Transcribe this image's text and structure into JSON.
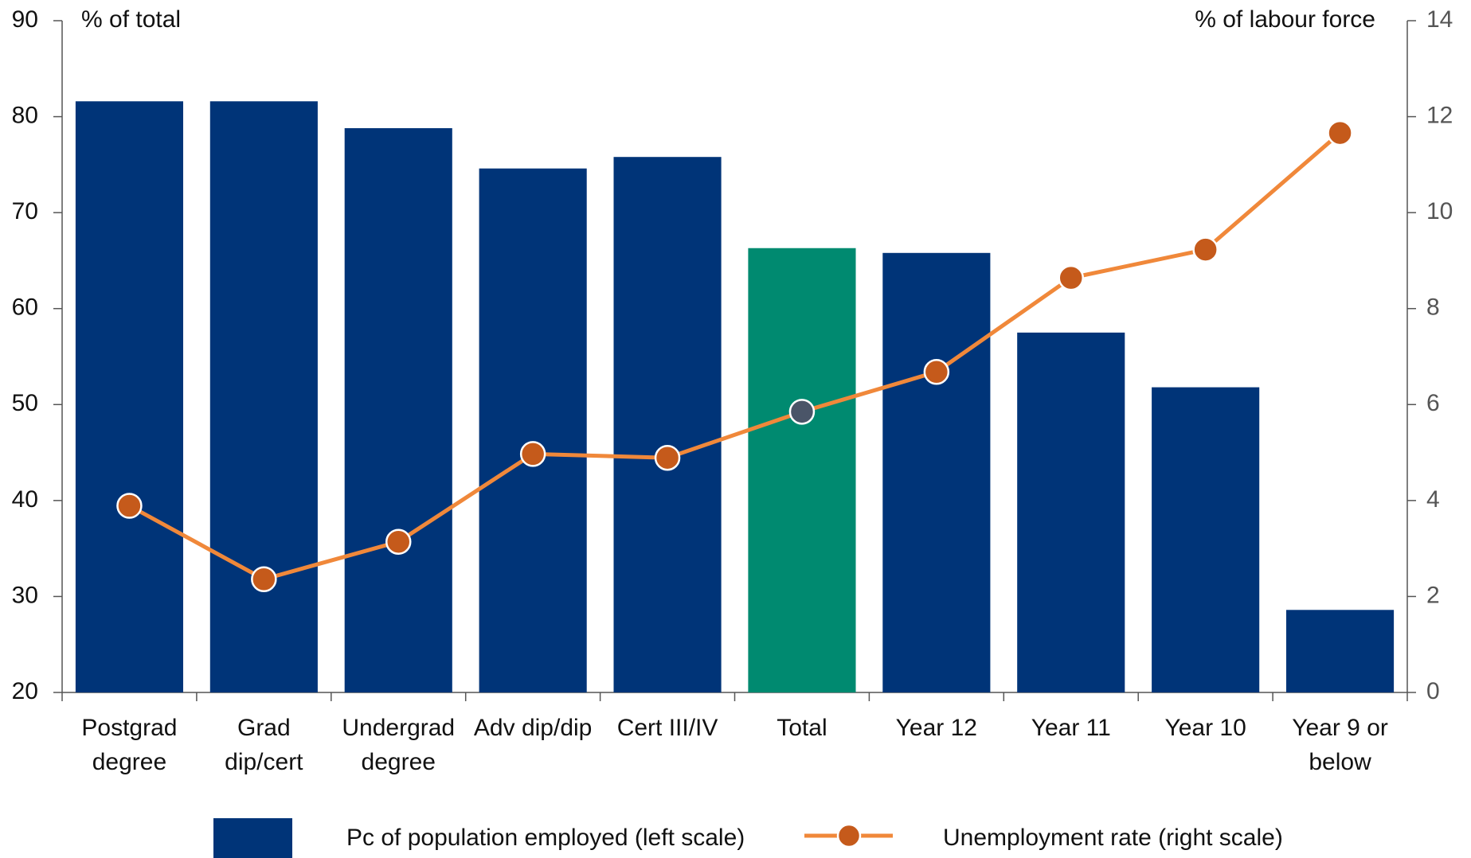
{
  "chart_data": {
    "type": "bar-line",
    "y_label": "% of total",
    "y2_label": "% of labour force",
    "categories": [
      [
        "Postgrad",
        "degree"
      ],
      [
        "Grad",
        "dip/cert"
      ],
      [
        "Undergrad",
        "degree"
      ],
      [
        "Adv dip/dip"
      ],
      [
        "Cert III/IV"
      ],
      [
        "Total"
      ],
      [
        "Year 12"
      ],
      [
        "Year 11"
      ],
      [
        "Year 10"
      ],
      [
        "Year 9 or",
        "below"
      ]
    ],
    "series": [
      {
        "name": "Pc of population employed (left scale)",
        "type": "bar",
        "color": "#003478",
        "point_colors": [
          "#003478",
          "#003478",
          "#003478",
          "#003478",
          "#003478",
          "#008a70",
          "#003478",
          "#003478",
          "#003478",
          "#003478"
        ],
        "values": [
          81.6,
          81.6,
          78.8,
          74.6,
          75.8,
          66.3,
          65.8,
          57.5,
          51.8,
          28.6
        ]
      },
      {
        "name": "Unemployment rate (right scale)",
        "type": "line",
        "axis": "y2",
        "color": "#f0883a",
        "marker_color": "#c55a1b",
        "point_colors": [
          "#c55a1b",
          "#c55a1b",
          "#c55a1b",
          "#c55a1b",
          "#c55a1b",
          "#4a5568",
          "#c55a1b",
          "#c55a1b",
          "#c55a1b",
          "#c55a1b"
        ],
        "values": [
          3.89,
          2.36,
          3.14,
          4.97,
          4.89,
          5.85,
          6.68,
          8.64,
          9.23,
          11.66
        ]
      }
    ],
    "ylim": [
      20,
      90
    ],
    "yticks": [
      20,
      30,
      40,
      50,
      60,
      70,
      80,
      90
    ],
    "y2lim": [
      0,
      14
    ],
    "y2ticks": [
      0,
      2,
      4,
      6,
      8,
      10,
      12,
      14
    ],
    "legend": "bottom"
  }
}
